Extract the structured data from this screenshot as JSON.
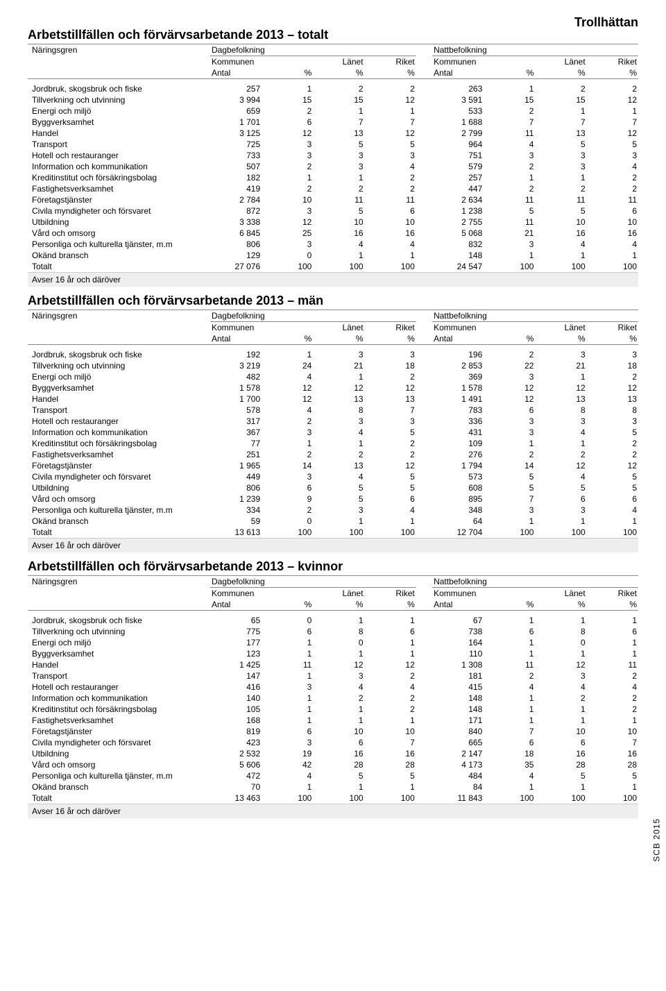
{
  "region_title": "Trollhättan",
  "side_text": "SCB 2015",
  "header_labels": {
    "naringsgren": "Näringsgren",
    "dagbefolkning": "Dagbefolkning",
    "nattbefolkning": "Nattbefolkning",
    "kommunen": "Kommunen",
    "lanet": "Länet",
    "riket": "Riket",
    "antal": "Antal",
    "pct": "%"
  },
  "footnote": "Avser 16 år och däröver",
  "sections": [
    {
      "title": "Arbetstillfällen och förvärvsarbetande 2013 – totalt",
      "rows": [
        {
          "label": "Jordbruk, skogsbruk och fiske",
          "d": [
            257,
            1,
            2,
            2
          ],
          "n": [
            263,
            1,
            2,
            2
          ]
        },
        {
          "label": "Tillverkning och utvinning",
          "d": [
            3994,
            15,
            15,
            12
          ],
          "n": [
            3591,
            15,
            15,
            12
          ]
        },
        {
          "label": "Energi och miljö",
          "d": [
            659,
            2,
            1,
            1
          ],
          "n": [
            533,
            2,
            1,
            1
          ]
        },
        {
          "label": "Byggverksamhet",
          "d": [
            1701,
            6,
            7,
            7
          ],
          "n": [
            1688,
            7,
            7,
            7
          ]
        },
        {
          "label": "Handel",
          "d": [
            3125,
            12,
            13,
            12
          ],
          "n": [
            2799,
            11,
            13,
            12
          ]
        },
        {
          "label": "Transport",
          "d": [
            725,
            3,
            5,
            5
          ],
          "n": [
            964,
            4,
            5,
            5
          ]
        },
        {
          "label": "Hotell och restauranger",
          "d": [
            733,
            3,
            3,
            3
          ],
          "n": [
            751,
            3,
            3,
            3
          ]
        },
        {
          "label": "Information och kommunikation",
          "d": [
            507,
            2,
            3,
            4
          ],
          "n": [
            579,
            2,
            3,
            4
          ]
        },
        {
          "label": "Kreditinstitut och försäkringsbolag",
          "d": [
            182,
            1,
            1,
            2
          ],
          "n": [
            257,
            1,
            1,
            2
          ]
        },
        {
          "label": "Fastighetsverksamhet",
          "d": [
            419,
            2,
            2,
            2
          ],
          "n": [
            447,
            2,
            2,
            2
          ]
        },
        {
          "label": "Företagstjänster",
          "d": [
            2784,
            10,
            11,
            11
          ],
          "n": [
            2634,
            11,
            11,
            11
          ]
        },
        {
          "label": "Civila myndigheter och försvaret",
          "d": [
            872,
            3,
            5,
            6
          ],
          "n": [
            1238,
            5,
            5,
            6
          ]
        },
        {
          "label": "Utbildning",
          "d": [
            3338,
            12,
            10,
            10
          ],
          "n": [
            2755,
            11,
            10,
            10
          ]
        },
        {
          "label": "Vård och omsorg",
          "d": [
            6845,
            25,
            16,
            16
          ],
          "n": [
            5068,
            21,
            16,
            16
          ]
        },
        {
          "label": "Personliga och kulturella tjänster, m.m",
          "d": [
            806,
            3,
            4,
            4
          ],
          "n": [
            832,
            3,
            4,
            4
          ]
        },
        {
          "label": "Okänd bransch",
          "d": [
            129,
            0,
            1,
            1
          ],
          "n": [
            148,
            1,
            1,
            1
          ]
        },
        {
          "label": "Totalt",
          "d": [
            27076,
            100,
            100,
            100
          ],
          "n": [
            24547,
            100,
            100,
            100
          ],
          "total": true
        }
      ]
    },
    {
      "title": "Arbetstillfällen och förvärvsarbetande 2013 – män",
      "rows": [
        {
          "label": "Jordbruk, skogsbruk och fiske",
          "d": [
            192,
            1,
            3,
            3
          ],
          "n": [
            196,
            2,
            3,
            3
          ]
        },
        {
          "label": "Tillverkning och utvinning",
          "d": [
            3219,
            24,
            21,
            18
          ],
          "n": [
            2853,
            22,
            21,
            18
          ]
        },
        {
          "label": "Energi och miljö",
          "d": [
            482,
            4,
            1,
            2
          ],
          "n": [
            369,
            3,
            1,
            2
          ]
        },
        {
          "label": "Byggverksamhet",
          "d": [
            1578,
            12,
            12,
            12
          ],
          "n": [
            1578,
            12,
            12,
            12
          ]
        },
        {
          "label": "Handel",
          "d": [
            1700,
            12,
            13,
            13
          ],
          "n": [
            1491,
            12,
            13,
            13
          ]
        },
        {
          "label": "Transport",
          "d": [
            578,
            4,
            8,
            7
          ],
          "n": [
            783,
            6,
            8,
            8
          ]
        },
        {
          "label": "Hotell och restauranger",
          "d": [
            317,
            2,
            3,
            3
          ],
          "n": [
            336,
            3,
            3,
            3
          ]
        },
        {
          "label": "Information och kommunikation",
          "d": [
            367,
            3,
            4,
            5
          ],
          "n": [
            431,
            3,
            4,
            5
          ]
        },
        {
          "label": "Kreditinstitut och försäkringsbolag",
          "d": [
            77,
            1,
            1,
            2
          ],
          "n": [
            109,
            1,
            1,
            2
          ]
        },
        {
          "label": "Fastighetsverksamhet",
          "d": [
            251,
            2,
            2,
            2
          ],
          "n": [
            276,
            2,
            2,
            2
          ]
        },
        {
          "label": "Företagstjänster",
          "d": [
            1965,
            14,
            13,
            12
          ],
          "n": [
            1794,
            14,
            12,
            12
          ]
        },
        {
          "label": "Civila myndigheter och försvaret",
          "d": [
            449,
            3,
            4,
            5
          ],
          "n": [
            573,
            5,
            4,
            5
          ]
        },
        {
          "label": "Utbildning",
          "d": [
            806,
            6,
            5,
            5
          ],
          "n": [
            608,
            5,
            5,
            5
          ]
        },
        {
          "label": "Vård och omsorg",
          "d": [
            1239,
            9,
            5,
            6
          ],
          "n": [
            895,
            7,
            6,
            6
          ]
        },
        {
          "label": "Personliga och kulturella tjänster, m.m",
          "d": [
            334,
            2,
            3,
            4
          ],
          "n": [
            348,
            3,
            3,
            4
          ]
        },
        {
          "label": "Okänd bransch",
          "d": [
            59,
            0,
            1,
            1
          ],
          "n": [
            64,
            1,
            1,
            1
          ]
        },
        {
          "label": "Totalt",
          "d": [
            13613,
            100,
            100,
            100
          ],
          "n": [
            12704,
            100,
            100,
            100
          ],
          "total": true
        }
      ]
    },
    {
      "title": "Arbetstillfällen och förvärvsarbetande 2013 – kvinnor",
      "rows": [
        {
          "label": "Jordbruk, skogsbruk och fiske",
          "d": [
            65,
            0,
            1,
            1
          ],
          "n": [
            67,
            1,
            1,
            1
          ]
        },
        {
          "label": "Tillverkning och utvinning",
          "d": [
            775,
            6,
            8,
            6
          ],
          "n": [
            738,
            6,
            8,
            6
          ]
        },
        {
          "label": "Energi och miljö",
          "d": [
            177,
            1,
            0,
            1
          ],
          "n": [
            164,
            1,
            0,
            1
          ]
        },
        {
          "label": "Byggverksamhet",
          "d": [
            123,
            1,
            1,
            1
          ],
          "n": [
            110,
            1,
            1,
            1
          ]
        },
        {
          "label": "Handel",
          "d": [
            1425,
            11,
            12,
            12
          ],
          "n": [
            1308,
            11,
            12,
            11
          ]
        },
        {
          "label": "Transport",
          "d": [
            147,
            1,
            3,
            2
          ],
          "n": [
            181,
            2,
            3,
            2
          ]
        },
        {
          "label": "Hotell och restauranger",
          "d": [
            416,
            3,
            4,
            4
          ],
          "n": [
            415,
            4,
            4,
            4
          ]
        },
        {
          "label": "Information och kommunikation",
          "d": [
            140,
            1,
            2,
            2
          ],
          "n": [
            148,
            1,
            2,
            2
          ]
        },
        {
          "label": "Kreditinstitut och försäkringsbolag",
          "d": [
            105,
            1,
            1,
            2
          ],
          "n": [
            148,
            1,
            1,
            2
          ]
        },
        {
          "label": "Fastighetsverksamhet",
          "d": [
            168,
            1,
            1,
            1
          ],
          "n": [
            171,
            1,
            1,
            1
          ]
        },
        {
          "label": "Företagstjänster",
          "d": [
            819,
            6,
            10,
            10
          ],
          "n": [
            840,
            7,
            10,
            10
          ]
        },
        {
          "label": "Civila myndigheter och försvaret",
          "d": [
            423,
            3,
            6,
            7
          ],
          "n": [
            665,
            6,
            6,
            7
          ]
        },
        {
          "label": "Utbildning",
          "d": [
            2532,
            19,
            16,
            16
          ],
          "n": [
            2147,
            18,
            16,
            16
          ]
        },
        {
          "label": "Vård och omsorg",
          "d": [
            5606,
            42,
            28,
            28
          ],
          "n": [
            4173,
            35,
            28,
            28
          ]
        },
        {
          "label": "Personliga och kulturella tjänster, m.m",
          "d": [
            472,
            4,
            5,
            5
          ],
          "n": [
            484,
            4,
            5,
            5
          ]
        },
        {
          "label": "Okänd bransch",
          "d": [
            70,
            1,
            1,
            1
          ],
          "n": [
            84,
            1,
            1,
            1
          ]
        },
        {
          "label": "Totalt",
          "d": [
            13463,
            100,
            100,
            100
          ],
          "n": [
            11843,
            100,
            100,
            100
          ],
          "total": true
        }
      ]
    }
  ]
}
